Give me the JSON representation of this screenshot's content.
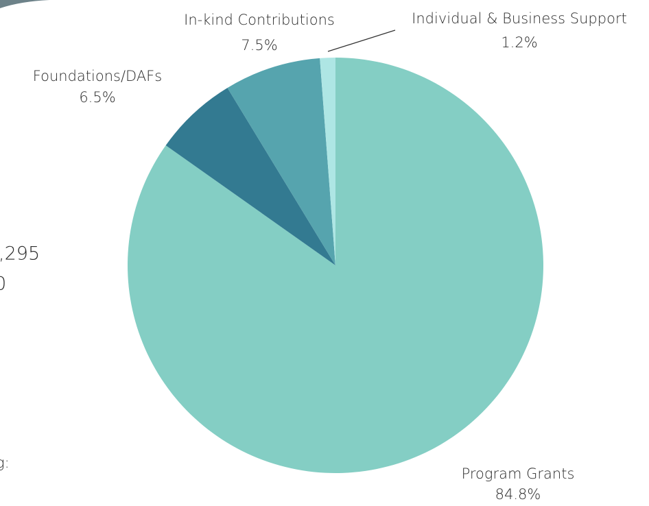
{
  "chart_data": {
    "type": "pie",
    "categories": [
      "Program Grants",
      "Foundations/DAFs",
      "In-kind Contributions",
      "Individual & Business Support"
    ],
    "values": [
      84.8,
      6.5,
      7.5,
      1.2
    ],
    "value_labels": [
      "84.8%",
      "6.5%",
      "7.5%",
      "1.2%"
    ],
    "colors": [
      "#84cec4",
      "#337a91",
      "#56a4ae",
      "#aee6e4"
    ]
  },
  "side_text": [
    ",295",
    "0",
    "g:"
  ]
}
